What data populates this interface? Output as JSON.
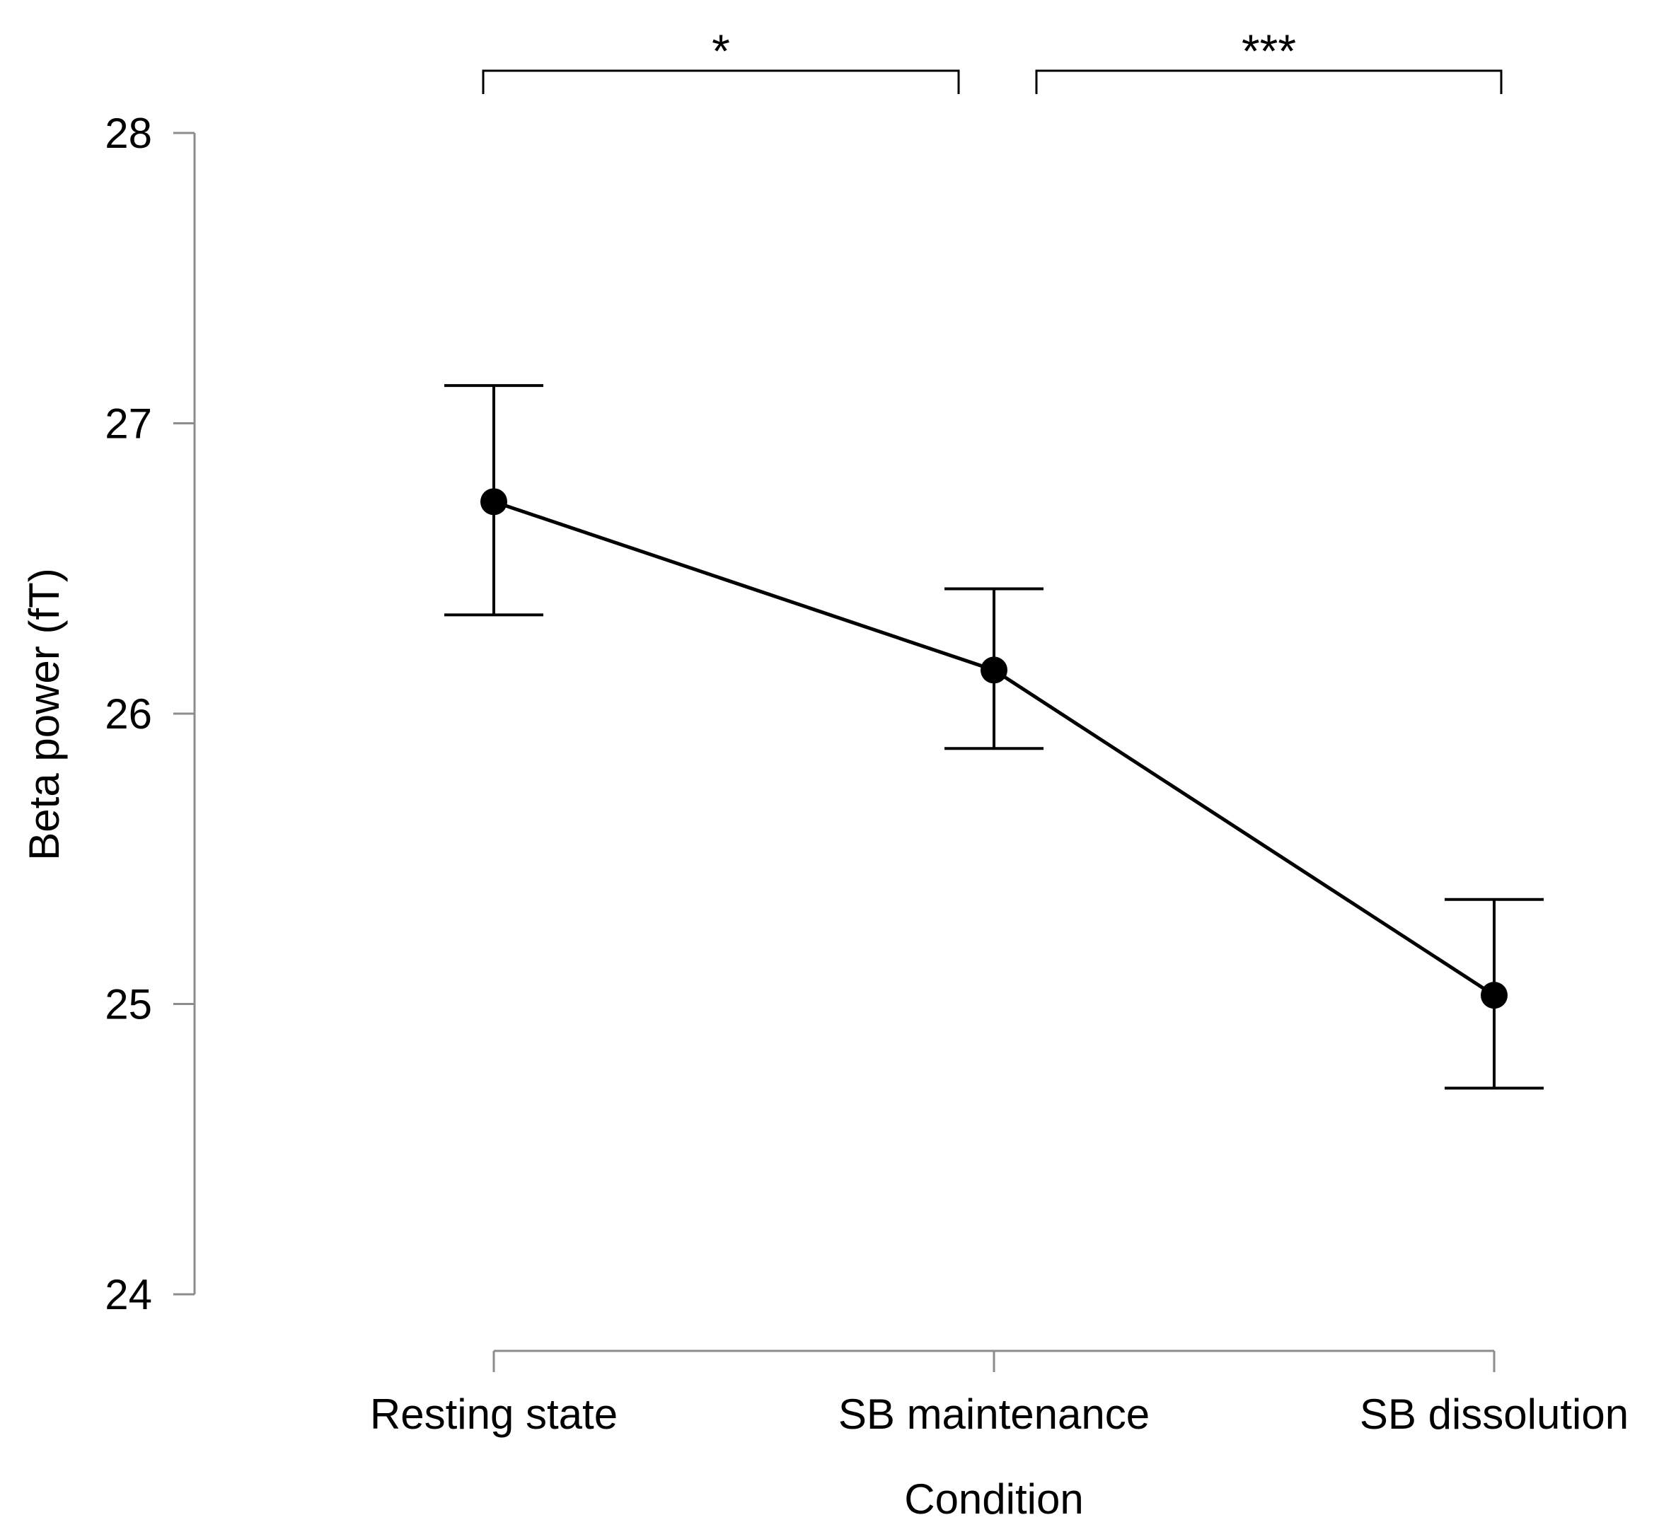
{
  "chart_data": {
    "type": "line",
    "title": "",
    "xlabel": "Condition",
    "ylabel": "Beta power (fT)",
    "categories": [
      "Resting state",
      "SB maintenance",
      "SB dissolution"
    ],
    "ylim": [
      24,
      28
    ],
    "yticks": [
      24,
      25,
      26,
      27,
      28
    ],
    "grid": false,
    "series": [
      {
        "name": "Beta power",
        "values": [
          26.73,
          26.15,
          25.03
        ],
        "error_low": [
          26.34,
          25.88,
          24.71
        ],
        "error_high": [
          27.13,
          26.43,
          25.36
        ]
      }
    ],
    "significance": [
      {
        "from": 0,
        "to": 1,
        "label": "*"
      },
      {
        "from": 1,
        "to": 2,
        "label": "***"
      }
    ]
  }
}
